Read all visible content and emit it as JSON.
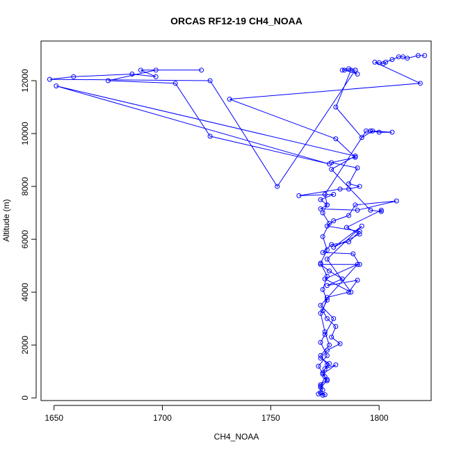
{
  "chart_data": {
    "type": "line",
    "title": "ORCAS RF12-19 CH4_NOAA",
    "xlabel": "CH4_NOAA",
    "ylabel": "Altitude (m)",
    "xlim": [
      1644,
      1824
    ],
    "ylim": [
      -100,
      13500
    ],
    "xticks": [
      1650,
      1700,
      1750,
      1800
    ],
    "yticks": [
      0,
      2000,
      4000,
      6000,
      8000,
      10000,
      12000
    ],
    "grid": false,
    "legend": "none",
    "color": "#0000ff",
    "marker": "open-circle",
    "series": [
      {
        "points": [
          [
            1821,
            12950
          ],
          [
            1818,
            12950
          ],
          [
            1813,
            12850
          ],
          [
            1811,
            12900
          ],
          [
            1809,
            12900
          ],
          [
            1806,
            12800
          ],
          [
            1803,
            12700
          ],
          [
            1802,
            12650
          ],
          [
            1800,
            12680
          ],
          [
            1798,
            12700
          ],
          [
            1819,
            11900
          ],
          [
            1731,
            11300
          ],
          [
            1780,
            9800
          ],
          [
            1789,
            9100
          ],
          [
            1778,
            8900
          ],
          [
            1790,
            8700
          ],
          [
            1786,
            8100
          ],
          [
            1791,
            8000
          ],
          [
            1786,
            7900
          ],
          [
            1782,
            7900
          ],
          [
            1763,
            7650
          ],
          [
            1779,
            7700
          ],
          [
            1773,
            7500
          ],
          [
            1776,
            7300
          ],
          [
            1773,
            7150
          ],
          [
            1790,
            7100
          ],
          [
            1808,
            7450
          ],
          [
            1789,
            7300
          ],
          [
            1786,
            6900
          ],
          [
            1779,
            6700
          ],
          [
            1776,
            6500
          ],
          [
            1791,
            6300
          ],
          [
            1786,
            5900
          ],
          [
            1778,
            5800
          ],
          [
            1774,
            5500
          ],
          [
            1788,
            5450
          ],
          [
            1791,
            5050
          ],
          [
            1773,
            5050
          ],
          [
            1777,
            4800
          ],
          [
            1783,
            4500
          ],
          [
            1776,
            4250
          ],
          [
            1790,
            4450
          ],
          [
            1786,
            4000
          ],
          [
            1776,
            3800
          ],
          [
            1774,
            3300
          ],
          [
            1776,
            3000
          ],
          [
            1780,
            2700
          ],
          [
            1778,
            2300
          ],
          [
            1782,
            2050
          ],
          [
            1776,
            1800
          ],
          [
            1773,
            1500
          ],
          [
            1777,
            1300
          ],
          [
            1775,
            1100
          ],
          [
            1780,
            1250
          ],
          [
            1774,
            900
          ],
          [
            1776,
            700
          ],
          [
            1773,
            500
          ],
          [
            1774,
            300
          ],
          [
            1772,
            150
          ],
          [
            1774,
            100
          ],
          [
            1775,
            120
          ],
          [
            1773,
            200
          ],
          [
            1773,
            400
          ],
          [
            1776,
            650
          ],
          [
            1774,
            950
          ],
          [
            1776,
            1250
          ],
          [
            1773,
            1600
          ],
          [
            1777,
            2000
          ],
          [
            1775,
            2500
          ],
          [
            1773,
            3200
          ],
          [
            1776,
            3700
          ],
          [
            1774,
            4100
          ],
          [
            1776,
            4600
          ],
          [
            1773,
            5100
          ],
          [
            1776,
            5600
          ],
          [
            1774,
            6100
          ],
          [
            1777,
            6600
          ],
          [
            1774,
            7000
          ],
          [
            1776,
            7300
          ],
          [
            1775,
            7700
          ],
          [
            1794,
            10100
          ],
          [
            1796,
            10100
          ],
          [
            1800,
            10050
          ],
          [
            1806,
            10050
          ],
          [
            1797,
            10100
          ],
          [
            1792,
            9850
          ],
          [
            1780,
            11000
          ],
          [
            1787,
            12400
          ],
          [
            1790,
            12250
          ],
          [
            1784,
            12400
          ],
          [
            1783,
            12400
          ],
          [
            1786,
            12450
          ],
          [
            1789,
            12400
          ],
          [
            1789,
            12400
          ],
          [
            1753,
            8000
          ],
          [
            1722,
            12000
          ],
          [
            1648,
            12050
          ],
          [
            1659,
            12150
          ],
          [
            1686,
            12250
          ],
          [
            1697,
            12150
          ],
          [
            1690,
            12400
          ],
          [
            1718,
            12400
          ],
          [
            1697,
            12400
          ],
          [
            1675,
            12000
          ],
          [
            1706,
            11900
          ],
          [
            1722,
            9900
          ],
          [
            1777,
            8850
          ],
          [
            1651,
            11800
          ],
          [
            1789,
            9150
          ],
          [
            1778,
            8650
          ],
          [
            1796,
            7100
          ],
          [
            1801,
            7050
          ],
          [
            1801,
            7100
          ],
          [
            1785,
            6450
          ],
          [
            1791,
            6200
          ],
          [
            1779,
            5700
          ],
          [
            1792,
            6500
          ],
          [
            1776,
            5250
          ],
          [
            1787,
            4000
          ],
          [
            1775,
            4500
          ],
          [
            1790,
            5050
          ],
          [
            1773,
            3500
          ],
          [
            1779,
            3000
          ],
          [
            1775,
            2400
          ],
          [
            1773,
            2100
          ],
          [
            1776,
            1600
          ],
          [
            1772,
            1200
          ],
          [
            1775,
            800
          ],
          [
            1773,
            450
          ],
          [
            1773,
            200
          ]
        ]
      }
    ]
  }
}
